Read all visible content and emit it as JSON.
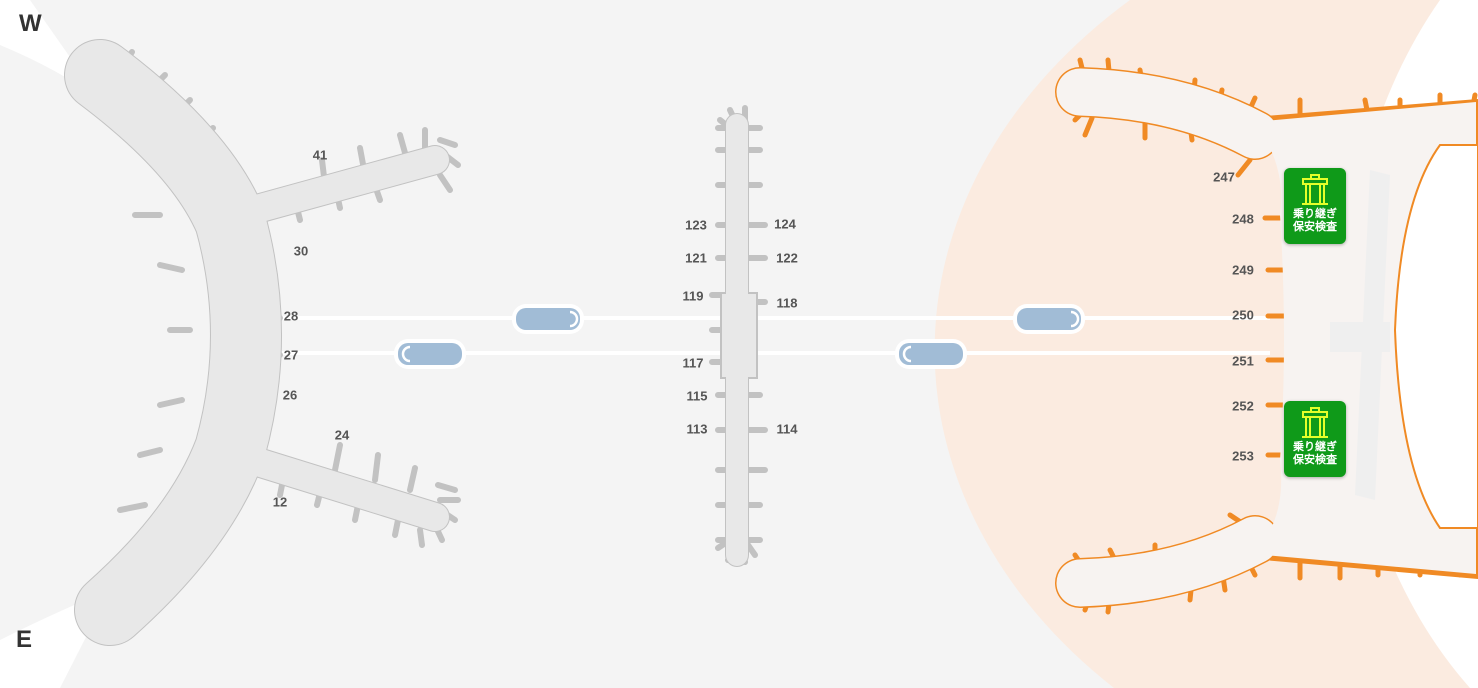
{
  "compass": {
    "north": "W",
    "south": "E"
  },
  "colors": {
    "background": "#f4f4f4",
    "terminal_fill": "#e8e8e8",
    "terminal3_outline": "#f08a24",
    "terminal3_zone": "#fbebe0",
    "walkway_pill": "#a1bcd6",
    "security_badge": "#0f9a19",
    "security_icon": "#e5ff2a"
  },
  "terminal_left_gates": [
    "41",
    "30",
    "28",
    "27",
    "26",
    "24",
    "12"
  ],
  "satellite_gates": [
    "123",
    "124",
    "121",
    "122",
    "119",
    "118",
    "117",
    "115",
    "113",
    "114"
  ],
  "terminal_right_gates": [
    "247",
    "248",
    "249",
    "250",
    "251",
    "252",
    "253"
  ],
  "security_checkpoints": [
    {
      "icon": "security-gate-icon",
      "label_line1": "乗り継ぎ",
      "label_line2": "保安検査"
    },
    {
      "icon": "security-gate-icon",
      "label_line1": "乗り継ぎ",
      "label_line2": "保安検査"
    }
  ]
}
